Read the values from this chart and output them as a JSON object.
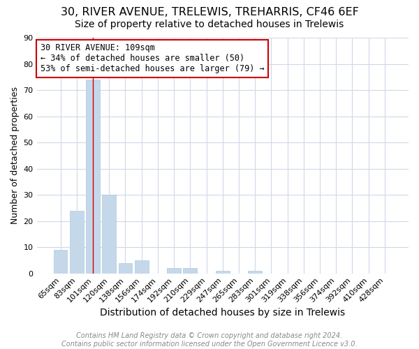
{
  "title": "30, RIVER AVENUE, TRELEWIS, TREHARRIS, CF46 6EF",
  "subtitle": "Size of property relative to detached houses in Trelewis",
  "xlabel": "Distribution of detached houses by size in Trelewis",
  "ylabel": "Number of detached properties",
  "footer_line1": "Contains HM Land Registry data © Crown copyright and database right 2024.",
  "footer_line2": "Contains public sector information licensed under the Open Government Licence v3.0.",
  "bar_labels": [
    "65sqm",
    "83sqm",
    "101sqm",
    "120sqm",
    "138sqm",
    "156sqm",
    "174sqm",
    "192sqm",
    "210sqm",
    "229sqm",
    "247sqm",
    "265sqm",
    "283sqm",
    "301sqm",
    "319sqm",
    "338sqm",
    "356sqm",
    "374sqm",
    "392sqm",
    "410sqm",
    "428sqm"
  ],
  "bar_values": [
    9,
    24,
    74,
    30,
    4,
    5,
    0,
    2,
    2,
    0,
    1,
    0,
    1,
    0,
    0,
    0,
    0,
    0,
    0,
    0,
    0
  ],
  "bar_color": "#c5d8ea",
  "bar_edge_color": "#aec8de",
  "highlight_bar_index": 2,
  "highlight_line_color": "#cc0000",
  "annotation_line1": "30 RIVER AVENUE: 109sqm",
  "annotation_line2": "← 34% of detached houses are smaller (50)",
  "annotation_line3": "53% of semi-detached houses are larger (79) →",
  "annotation_box_color": "#ffffff",
  "annotation_box_edge_color": "#cc0000",
  "ylim": [
    0,
    90
  ],
  "yticks": [
    0,
    10,
    20,
    30,
    40,
    50,
    60,
    70,
    80,
    90
  ],
  "grid_color": "#d0d8e8",
  "background_color": "#ffffff",
  "title_fontsize": 11.5,
  "subtitle_fontsize": 10,
  "xlabel_fontsize": 10,
  "ylabel_fontsize": 9,
  "tick_fontsize": 8,
  "annotation_fontsize": 8.5,
  "footer_fontsize": 7
}
